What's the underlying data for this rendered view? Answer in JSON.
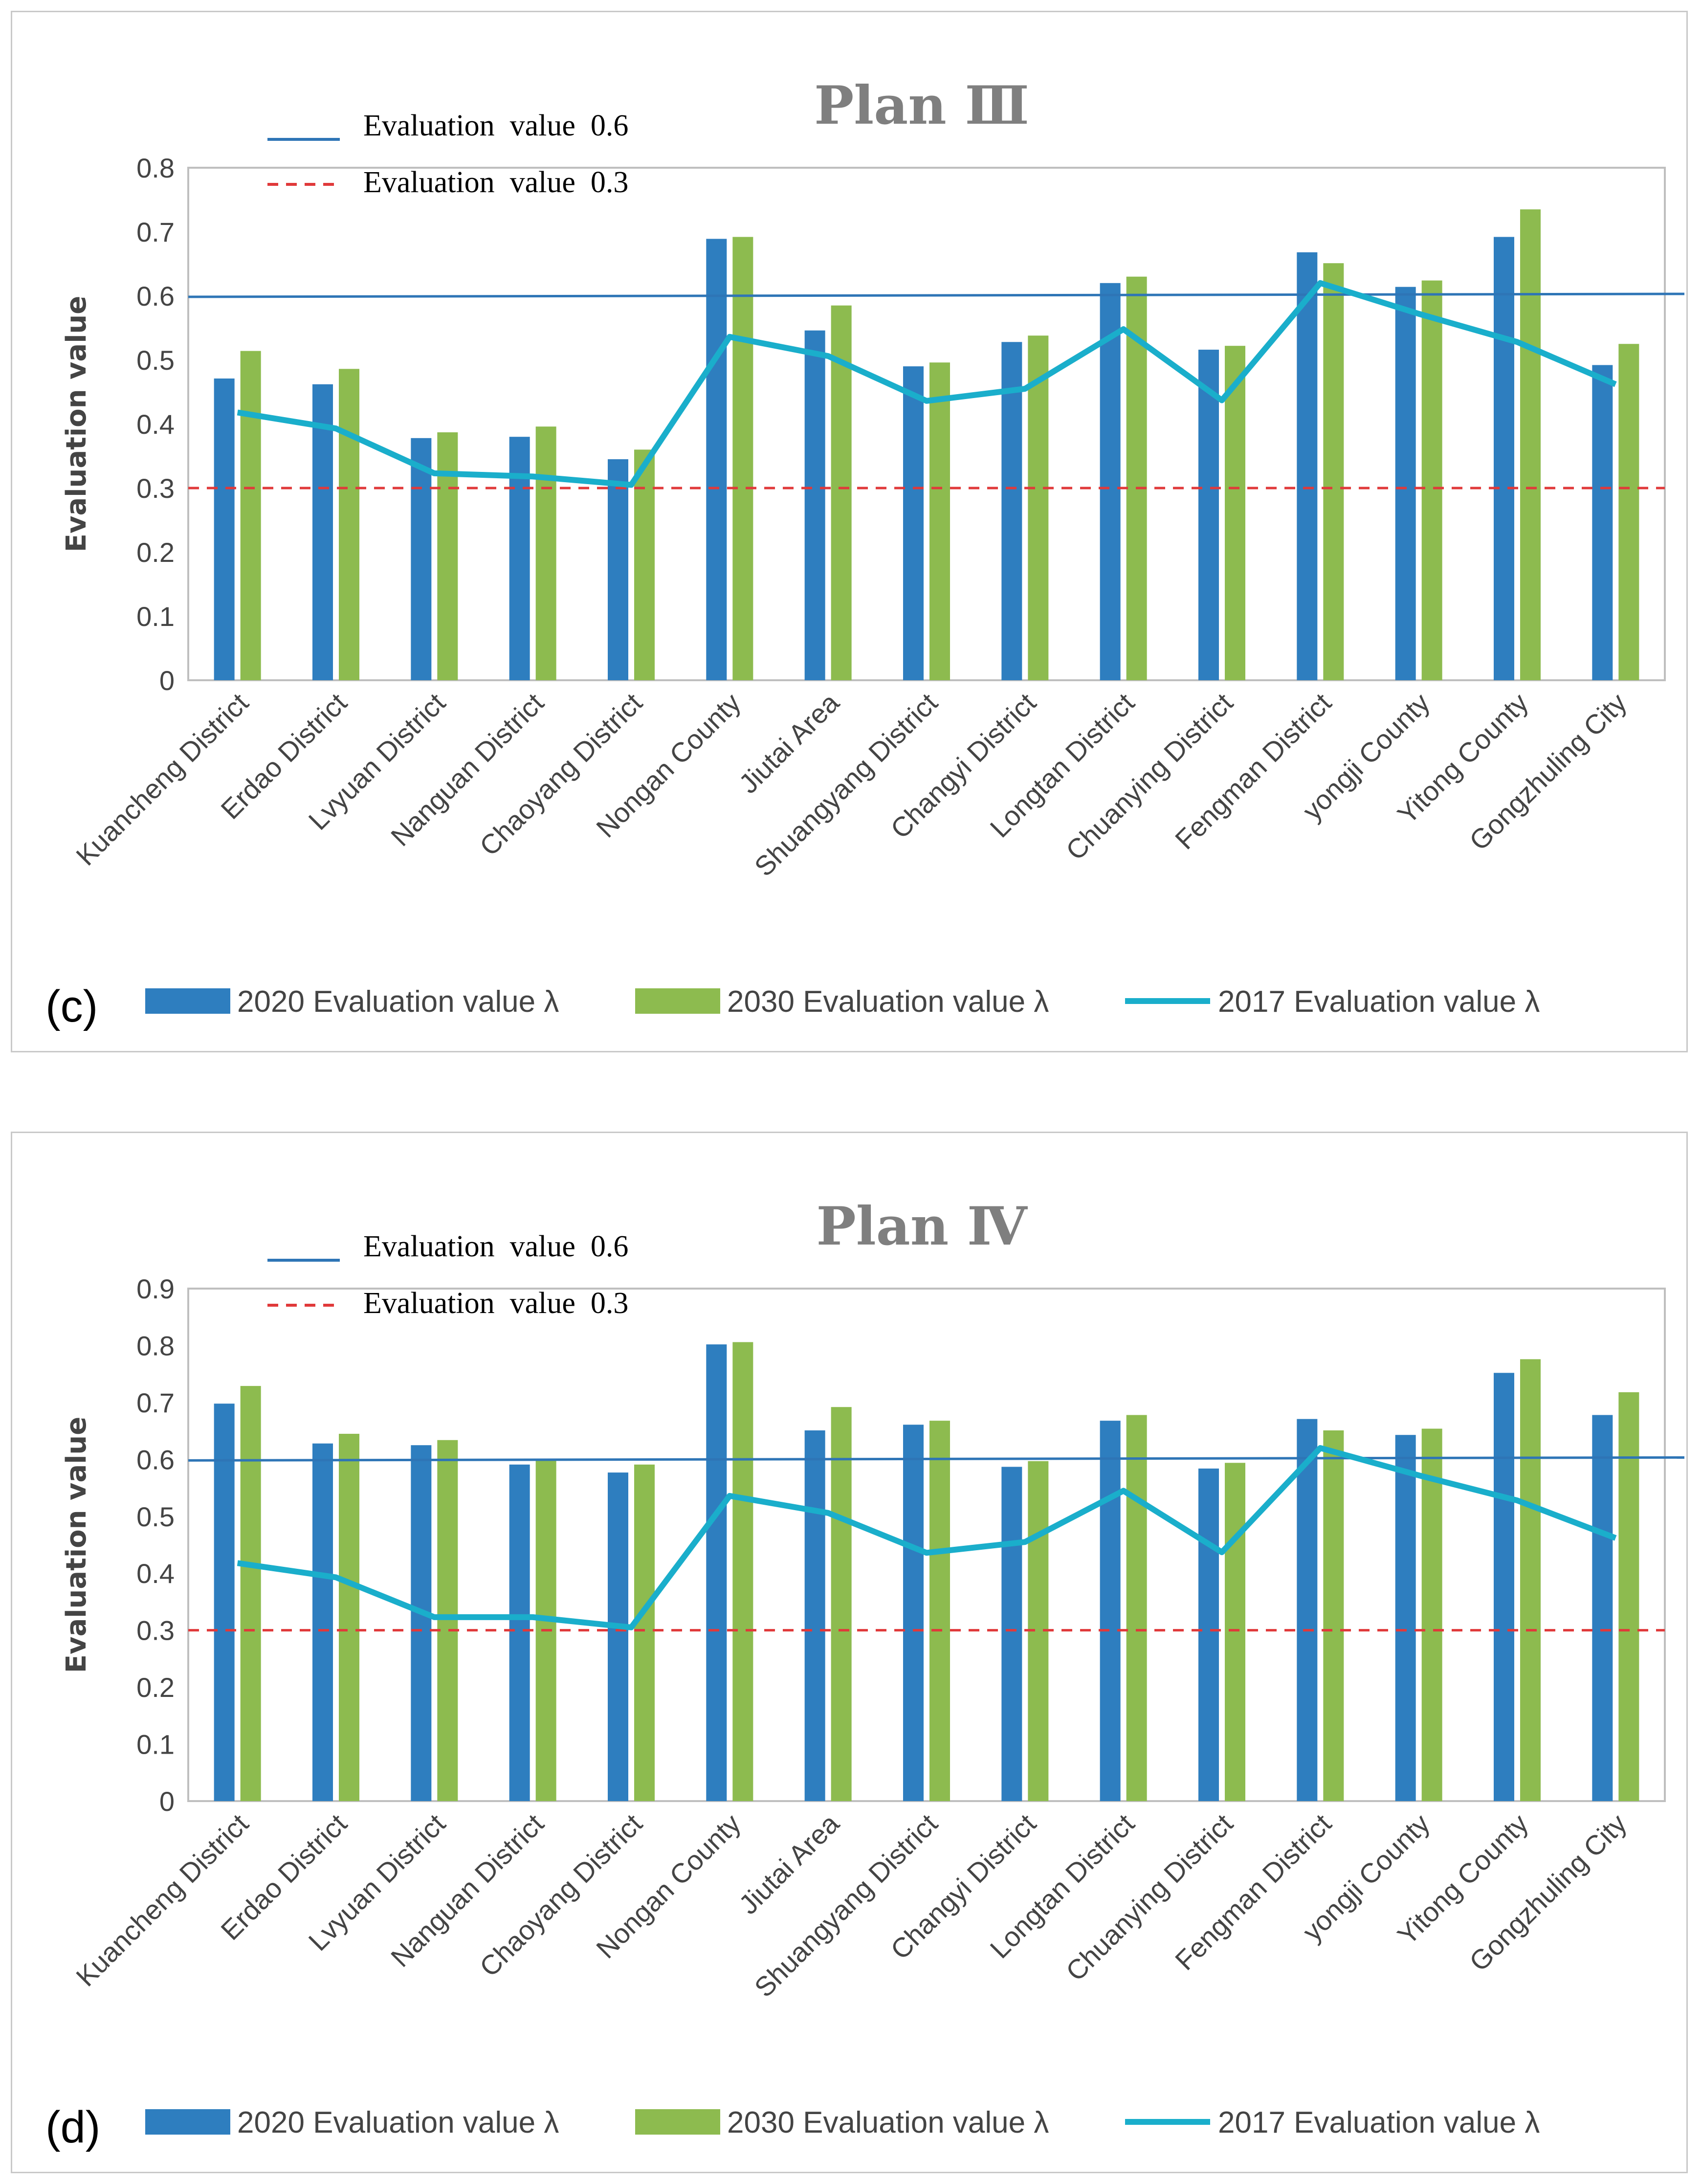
{
  "colors": {
    "bar2020": "#2e7ebf",
    "bar2030": "#8dbb4f",
    "line2017": "#1aaecb",
    "ref06": "#2e75b6",
    "ref03": "#e0393a",
    "axis": "#bfbfbf",
    "title": "#7f7f7f"
  },
  "shared": {
    "categories": [
      "Kuancheng District",
      "Erdao District",
      "Lvyuan District",
      "Nanguan District",
      "Chaoyang District",
      "Nongan County",
      "Jiutai Area",
      "Shuangyang District",
      "Changyi District",
      "Longtan District",
      "Chuanying District",
      "Fengman District",
      "yongji County",
      "Yitong County",
      "Gongzhuling City"
    ],
    "ylabel": "Evaluation value",
    "ref_lines": [
      {
        "label": "Evaluation  value  0.6",
        "value": 0.6,
        "style": "solid"
      },
      {
        "label": "Evaluation  value  0.3",
        "value": 0.3,
        "style": "dashed"
      }
    ],
    "legend": [
      "2020 Evaluation value λ",
      "2030 Evaluation value λ",
      "2017 Evaluation value λ"
    ]
  },
  "chart_data": [
    {
      "type": "bar",
      "panel_label": "(c)",
      "title": "Plan Ⅲ",
      "ylim": [
        0,
        0.8
      ],
      "yticks": [
        "0",
        "0.1",
        "0.2",
        "0.3",
        "0.4",
        "0.5",
        "0.6",
        "0.7",
        "0.8"
      ],
      "series": [
        {
          "name": "2020 Evaluation value λ",
          "kind": "bar",
          "values": [
            0.471,
            0.462,
            0.378,
            0.38,
            0.345,
            0.689,
            0.546,
            0.49,
            0.528,
            0.62,
            0.516,
            0.668,
            0.614,
            0.692,
            0.492
          ]
        },
        {
          "name": "2030 Evaluation value λ",
          "kind": "bar",
          "values": [
            0.514,
            0.486,
            0.387,
            0.396,
            0.36,
            0.692,
            0.585,
            0.496,
            0.538,
            0.63,
            0.522,
            0.651,
            0.624,
            0.735,
            0.525
          ]
        },
        {
          "name": "2017 Evaluation value λ",
          "kind": "line",
          "values": [
            0.418,
            0.393,
            0.323,
            0.318,
            0.305,
            0.536,
            0.506,
            0.436,
            0.455,
            0.548,
            0.437,
            0.62,
            0.572,
            0.528,
            0.462
          ]
        }
      ]
    },
    {
      "type": "bar",
      "panel_label": "(d)",
      "title": "Plan Ⅳ",
      "ylim": [
        0,
        0.9
      ],
      "yticks": [
        "0",
        "0.1",
        "0.2",
        "0.3",
        "0.4",
        "0.5",
        "0.6",
        "0.7",
        "0.8",
        "0.9"
      ],
      "series": [
        {
          "name": "2020 Evaluation value λ",
          "kind": "bar",
          "values": [
            0.698,
            0.628,
            0.625,
            0.591,
            0.577,
            0.802,
            0.651,
            0.661,
            0.587,
            0.668,
            0.584,
            0.671,
            0.643,
            0.752,
            0.678
          ]
        },
        {
          "name": "2030 Evaluation value λ",
          "kind": "bar",
          "values": [
            0.729,
            0.645,
            0.634,
            0.6,
            0.591,
            0.806,
            0.692,
            0.668,
            0.597,
            0.678,
            0.594,
            0.651,
            0.654,
            0.776,
            0.718
          ]
        },
        {
          "name": "2017 Evaluation value λ",
          "kind": "line",
          "values": [
            0.418,
            0.393,
            0.323,
            0.323,
            0.305,
            0.536,
            0.506,
            0.436,
            0.455,
            0.545,
            0.437,
            0.62,
            0.572,
            0.528,
            0.462
          ]
        }
      ]
    }
  ]
}
